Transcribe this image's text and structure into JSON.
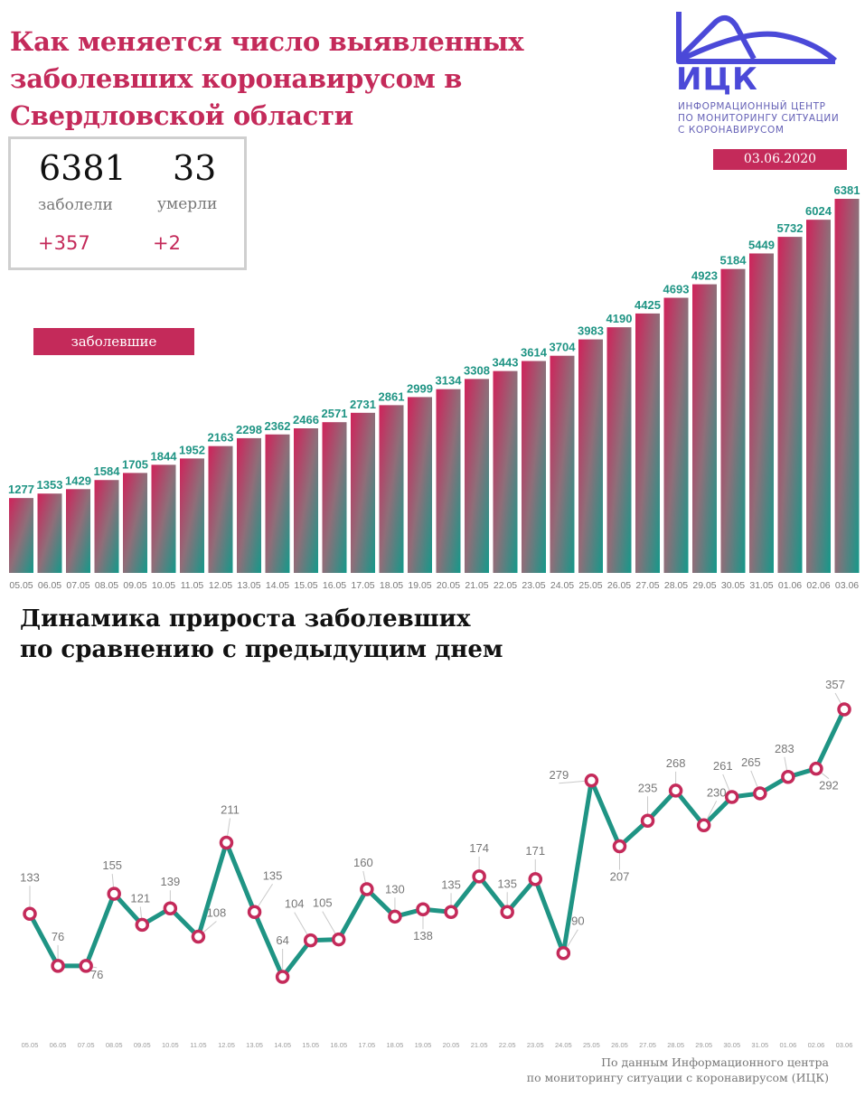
{
  "header": {
    "title_lines": [
      "Как меняется число выявленных",
      "заболевших коронавирусом в",
      "Свердловской области"
    ],
    "date": "03.06.2020"
  },
  "logo": {
    "abbr": "ИЦК",
    "subtitle_lines": [
      "ИНФОРМАЦИОННЫЙ ЦЕНТР",
      "ПО МОНИТОРИНГУ СИТУАЦИИ",
      "С КОРОНАВИРУСОМ"
    ],
    "color": "#4b49d8"
  },
  "stats": {
    "cases": {
      "value": "6381",
      "label": "заболели",
      "delta": "+357"
    },
    "deaths": {
      "value": "33",
      "label": "умерли",
      "delta": "+2"
    }
  },
  "legend": {
    "label": "заболевшие"
  },
  "colors": {
    "accent": "#c42a5a",
    "teal": "#1f9484",
    "label_gray": "#777777"
  },
  "subtitle_lines": [
    "Динамика прироста заболевших",
    "по сравнению с предыдущим днем"
  ],
  "source_lines": [
    "По данным Информационного центра",
    "по мониторингу ситуации с коронавирусом (ИЦК)"
  ],
  "chart_data": [
    {
      "type": "bar",
      "title": "Как меняется число выявленных заболевших коронавирусом в Свердловской области",
      "legend": [
        "заболевшие"
      ],
      "xlabel": "",
      "ylabel": "",
      "grid": false,
      "categories": [
        "05.05",
        "06.05",
        "07.05",
        "08.05",
        "09.05",
        "10.05",
        "11.05",
        "12.05",
        "13.05",
        "14.05",
        "15.05",
        "16.05",
        "17.05",
        "18.05",
        "19.05",
        "20.05",
        "21.05",
        "22.05",
        "23.05",
        "24.05",
        "25.05",
        "26.05",
        "27.05",
        "28.05",
        "29.05",
        "30.05",
        "31.05",
        "01.06",
        "02.06",
        "03.06"
      ],
      "values": [
        1277,
        1353,
        1429,
        1584,
        1705,
        1844,
        1952,
        2163,
        2298,
        2362,
        2466,
        2571,
        2731,
        2861,
        2999,
        3134,
        3308,
        3443,
        3614,
        3704,
        3983,
        4190,
        4425,
        4693,
        4923,
        5184,
        5449,
        5732,
        6024,
        6381
      ],
      "ylim": [
        0,
        6500
      ]
    },
    {
      "type": "line",
      "title": "Динамика прироста заболевших по сравнению с предыдущим днем",
      "xlabel": "",
      "ylabel": "",
      "grid": false,
      "categories": [
        "05.05",
        "06.05",
        "07.05",
        "08.05",
        "09.05",
        "10.05",
        "11.05",
        "12.05",
        "13.05",
        "14.05",
        "15.05",
        "16.05",
        "17.05",
        "18.05",
        "19.05",
        "20.05",
        "21.05",
        "22.05",
        "23.05",
        "24.05",
        "25.05",
        "26.05",
        "27.05",
        "28.05",
        "29.05",
        "30.05",
        "31.05",
        "01.06",
        "02.06",
        "03.06"
      ],
      "values": [
        133,
        76,
        76,
        155,
        121,
        139,
        108,
        211,
        135,
        64,
        104,
        105,
        160,
        130,
        138,
        135,
        174,
        135,
        171,
        90,
        279,
        207,
        235,
        268,
        230,
        261,
        265,
        283,
        292,
        357
      ],
      "ylim": [
        64,
        357
      ]
    }
  ]
}
